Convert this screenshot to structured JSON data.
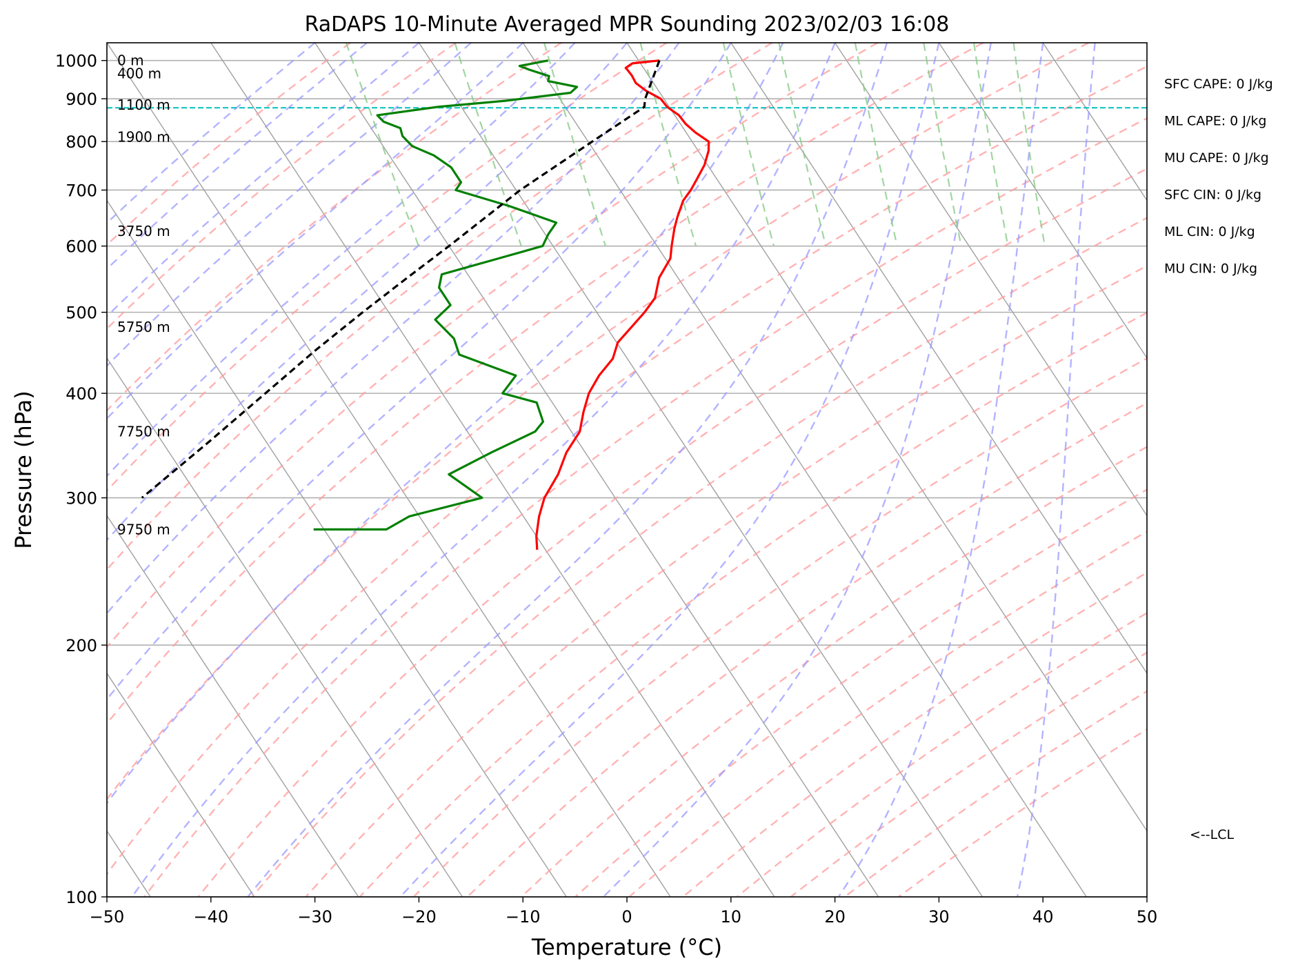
{
  "chart_data": {
    "type": "line",
    "title": "RaDAPS 10-Minute Averaged MPR Sounding 2023/02/03 16:08",
    "xlabel": "Temperature (°C)",
    "ylabel": "Pressure (hPa)",
    "xlim": [
      -50,
      50
    ],
    "ylim": [
      1050,
      100
    ],
    "y_scale": "log",
    "x_ticks": [
      -50,
      -40,
      -30,
      -20,
      -10,
      0,
      10,
      20,
      30,
      40,
      50
    ],
    "x_tick_labels": [
      "−50",
      "−40",
      "−30",
      "−20",
      "−10",
      "0",
      "10",
      "20",
      "30",
      "40",
      "50"
    ],
    "y_ticks": [
      100,
      200,
      300,
      400,
      500,
      600,
      700,
      800,
      900,
      1000
    ],
    "y_tick_labels": [
      "100",
      "200",
      "300",
      "400",
      "500",
      "600",
      "700",
      "800",
      "900",
      "1000"
    ],
    "grid": true,
    "series": [
      {
        "role": "temperature",
        "color": "#ff0000",
        "points": [
          [
            1000,
            2.0
          ],
          [
            992,
            -0.8
          ],
          [
            980,
            -1.7
          ],
          [
            960,
            -1.6
          ],
          [
            940,
            -1.7
          ],
          [
            920,
            -1.2
          ],
          [
            900,
            -0.3
          ],
          [
            880,
            -0.2
          ],
          [
            860,
            0.4
          ],
          [
            840,
            0.5
          ],
          [
            820,
            0.9
          ],
          [
            800,
            1.6
          ],
          [
            780,
            1.0
          ],
          [
            750,
            -0.3
          ],
          [
            720,
            -2.0
          ],
          [
            700,
            -3.2
          ],
          [
            680,
            -4.6
          ],
          [
            650,
            -6.2
          ],
          [
            630,
            -7.2
          ],
          [
            600,
            -8.6
          ],
          [
            580,
            -9.5
          ],
          [
            550,
            -11.8
          ],
          [
            520,
            -13.5
          ],
          [
            500,
            -15.4
          ],
          [
            480,
            -17.6
          ],
          [
            460,
            -19.9
          ],
          [
            440,
            -21.4
          ],
          [
            420,
            -23.8
          ],
          [
            400,
            -25.9
          ],
          [
            380,
            -27.6
          ],
          [
            360,
            -29.2
          ],
          [
            340,
            -31.8
          ],
          [
            320,
            -34.0
          ],
          [
            300,
            -36.8
          ],
          [
            285,
            -38.5
          ],
          [
            270,
            -40.0
          ],
          [
            260,
            -40.8
          ]
        ]
      },
      {
        "role": "dewpoint",
        "color": "#008000",
        "points": [
          [
            1000,
            -8.7
          ],
          [
            985,
            -11.8
          ],
          [
            975,
            -11.1
          ],
          [
            958,
            -9.6
          ],
          [
            945,
            -10.0
          ],
          [
            930,
            -7.6
          ],
          [
            915,
            -8.6
          ],
          [
            895,
            -15.4
          ],
          [
            880,
            -22.3
          ],
          [
            860,
            -28.6
          ],
          [
            845,
            -28.4
          ],
          [
            830,
            -27.2
          ],
          [
            812,
            -27.5
          ],
          [
            790,
            -27.2
          ],
          [
            770,
            -25.7
          ],
          [
            745,
            -24.8
          ],
          [
            715,
            -24.8
          ],
          [
            700,
            -25.8
          ],
          [
            670,
            -21.7
          ],
          [
            640,
            -18.2
          ],
          [
            620,
            -19.7
          ],
          [
            600,
            -21.0
          ],
          [
            580,
            -26.0
          ],
          [
            555,
            -32.5
          ],
          [
            535,
            -33.6
          ],
          [
            510,
            -33.6
          ],
          [
            490,
            -36.0
          ],
          [
            465,
            -35.4
          ],
          [
            445,
            -35.9
          ],
          [
            420,
            -31.8
          ],
          [
            400,
            -34.2
          ],
          [
            390,
            -31.5
          ],
          [
            370,
            -32.1
          ],
          [
            360,
            -33.5
          ],
          [
            340,
            -39.0
          ],
          [
            320,
            -44.5
          ],
          [
            300,
            -42.8
          ],
          [
            285,
            -51.0
          ],
          [
            275,
            -54.0
          ],
          [
            275,
            -61.0
          ]
        ]
      },
      {
        "role": "parcel",
        "color": "#000000",
        "points": [
          [
            1000,
            2.0
          ],
          [
            900,
            -1.8
          ],
          [
            880,
            -2.4
          ],
          [
            800,
            -9.6
          ],
          [
            700,
            -19.6
          ],
          [
            650,
            -24.6
          ],
          [
            600,
            -30.0
          ],
          [
            550,
            -36.0
          ],
          [
            500,
            -42.5
          ],
          [
            450,
            -49.5
          ],
          [
            400,
            -57.0
          ],
          [
            350,
            -65.5
          ],
          [
            300,
            -75.5
          ]
        ]
      }
    ],
    "lcl_pressure": 878,
    "lcl_label": "<--LCL",
    "height_labels": [
      {
        "pressure": 1000,
        "text": "0 m"
      },
      {
        "pressure": 965,
        "text": "400 m"
      },
      {
        "pressure": 885,
        "text": "1100 m"
      },
      {
        "pressure": 810,
        "text": "1900 m"
      },
      {
        "pressure": 625,
        "text": "3750 m"
      },
      {
        "pressure": 480,
        "text": "5750 m"
      },
      {
        "pressure": 360,
        "text": "7750 m"
      },
      {
        "pressure": 275,
        "text": "9750 m"
      }
    ],
    "parameters": [
      "SFC CAPE: 0 J/kg",
      "ML CAPE: 0 J/kg",
      "MU CAPE: 0 J/kg",
      "SFC CIN: 0 J/kg",
      "ML CIN: 0 J/kg",
      "MU CIN: 0 J/kg"
    ],
    "background_lines": {
      "isotherm_color": "#a0a0a0",
      "dry_adiabat_color": "#ff9999",
      "moist_adiabat_color": "#9999ff",
      "mixing_ratio_color": "#88cc88"
    }
  }
}
